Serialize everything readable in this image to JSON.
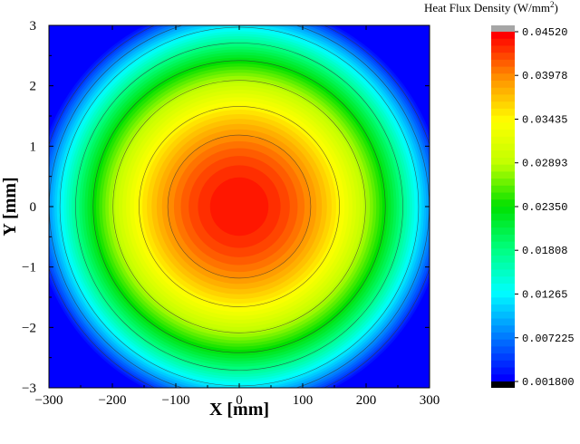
{
  "chart_data": {
    "type": "heatmap",
    "subtype": "filled-contour",
    "xlabel": "X [mm]",
    "ylabel": "Y [mm]",
    "xlim": [
      -300,
      300
    ],
    "ylim": [
      -3,
      3
    ],
    "x_ticks": [
      "−300",
      "−200",
      "−100",
      "0",
      "100",
      "200",
      "300"
    ],
    "y_ticks": [
      "3",
      "2",
      "1",
      "0",
      "−1",
      "−2",
      "−3"
    ],
    "peak": {
      "x": 0,
      "y": 0,
      "value": 0.0452
    },
    "distribution": "radially symmetric, decreasing from center",
    "contour_lines": true,
    "colorbar": {
      "title_prefix": "Heat Flux Density (W/mm",
      "title_exponent": "2",
      "title_suffix": ")",
      "min": 0.0018,
      "max": 0.0452,
      "tick_labels": [
        "0.04520",
        "0.03978",
        "0.03435",
        "0.02893",
        "0.02350",
        "0.01808",
        "0.01265",
        "0.007225",
        "0.001800"
      ],
      "tick_values": [
        0.0452,
        0.03978,
        0.03435,
        0.02893,
        0.0235,
        0.01808,
        0.01265,
        0.007225,
        0.0018
      ],
      "over_color": "#a6a6a6",
      "under_color": "#000000",
      "colormap": [
        "#0000ff",
        "#0080ff",
        "#00ffff",
        "#00ff80",
        "#00e000",
        "#c0ff00",
        "#ffff00",
        "#ff9000",
        "#ff0000"
      ]
    }
  }
}
